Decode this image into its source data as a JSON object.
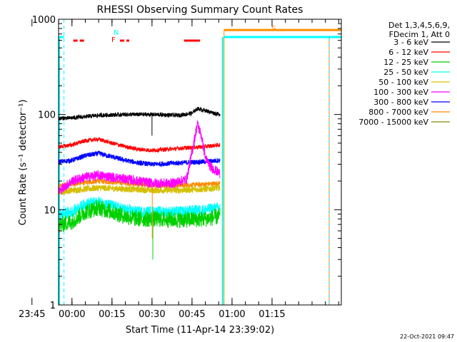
{
  "chart_data": {
    "type": "line",
    "title": "RHESSI Observing Summary Count Rates",
    "xlabel": "Start Time (11-Apr-14 23:39:02)",
    "ylabel": "Count Rate (s⁻¹ detector⁻¹)",
    "ylog": true,
    "ylim": [
      1,
      1000
    ],
    "xlim_minutes": [
      -5.03,
      100.97
    ],
    "x_ticks": [
      {
        "label": "23:45",
        "minute": -15
      },
      {
        "label": "00:00",
        "minute": 0
      },
      {
        "label": "00:15",
        "minute": 15
      },
      {
        "label": "00:30",
        "minute": 30
      },
      {
        "label": "00:45",
        "minute": 45
      },
      {
        "label": "01:00",
        "minute": 60
      },
      {
        "label": "01:15",
        "minute": 75
      }
    ],
    "y_ticks": [
      "1",
      "10",
      "100",
      "1000"
    ],
    "legend_header": [
      "Det 1,3,4,5,6,9,",
      "FDecim 1, Att 0"
    ],
    "series": [
      {
        "name": "3 - 6 keV",
        "color": "#000000",
        "values": [
          [
            -8.5,
            90
          ],
          [
            0,
            92
          ],
          [
            10,
            98
          ],
          [
            20,
            100
          ],
          [
            30,
            100
          ],
          [
            40,
            98
          ],
          [
            45,
            103
          ],
          [
            47,
            115
          ],
          [
            50,
            110
          ],
          [
            54,
            102
          ],
          [
            55.5,
            100
          ]
        ]
      },
      {
        "name": "6 - 12 keV",
        "color": "#ff0000",
        "values": [
          [
            -8.5,
            44
          ],
          [
            0,
            48
          ],
          [
            5,
            53
          ],
          [
            10,
            55
          ],
          [
            15,
            50
          ],
          [
            20,
            46
          ],
          [
            25,
            43
          ],
          [
            30,
            42
          ],
          [
            40,
            44
          ],
          [
            50,
            46
          ],
          [
            55.5,
            48
          ]
        ]
      },
      {
        "name": "12 - 25 keV",
        "color": "#00d000",
        "values": [
          [
            -8.5,
            6.5
          ],
          [
            0,
            7.5
          ],
          [
            5,
            9.5
          ],
          [
            10,
            10.5
          ],
          [
            15,
            9.5
          ],
          [
            20,
            8.5
          ],
          [
            25,
            8
          ],
          [
            30,
            8
          ],
          [
            40,
            7.8
          ],
          [
            50,
            8
          ],
          [
            55.5,
            8.5
          ]
        ]
      },
      {
        "name": "25 - 50 keV",
        "color": "#00ffff",
        "values": [
          [
            -8.5,
            8.5
          ],
          [
            0,
            9.5
          ],
          [
            5,
            11.5
          ],
          [
            10,
            12
          ],
          [
            15,
            11
          ],
          [
            20,
            10
          ],
          [
            25,
            9.5
          ],
          [
            30,
            9.5
          ],
          [
            40,
            9.5
          ],
          [
            50,
            10
          ],
          [
            55.5,
            10.5
          ]
        ]
      },
      {
        "name": "50 - 100 keV",
        "color": "#d4c000",
        "values": [
          [
            -8.5,
            15
          ],
          [
            0,
            16
          ],
          [
            10,
            17
          ],
          [
            20,
            16.5
          ],
          [
            30,
            16
          ],
          [
            40,
            16
          ],
          [
            50,
            16.5
          ],
          [
            55.5,
            17
          ]
        ]
      },
      {
        "name": "100 - 300 keV",
        "color": "#ff00ff",
        "values": [
          [
            -8.5,
            13
          ],
          [
            0,
            20
          ],
          [
            5,
            22
          ],
          [
            10,
            23
          ],
          [
            15,
            22
          ],
          [
            20,
            21
          ],
          [
            25,
            20
          ],
          [
            30,
            19
          ],
          [
            38,
            19
          ],
          [
            43,
            21
          ],
          [
            45,
            40
          ],
          [
            47,
            80
          ],
          [
            48.5,
            60
          ],
          [
            50,
            35
          ],
          [
            52,
            28
          ],
          [
            55.5,
            24
          ]
        ]
      },
      {
        "name": "300 - 800 keV",
        "color": "#0000ff",
        "values": [
          [
            -8.5,
            31
          ],
          [
            0,
            33
          ],
          [
            5,
            37
          ],
          [
            10,
            39
          ],
          [
            15,
            36
          ],
          [
            20,
            33
          ],
          [
            25,
            31
          ],
          [
            30,
            30
          ],
          [
            40,
            31
          ],
          [
            50,
            32
          ],
          [
            55.5,
            33
          ]
        ]
      },
      {
        "name": "800 - 7000 keV",
        "color": "#ff8c00",
        "values": [
          [
            -8.5,
            17.5
          ],
          [
            0,
            18.5
          ],
          [
            10,
            20
          ],
          [
            20,
            19
          ],
          [
            30,
            18
          ],
          [
            40,
            18
          ],
          [
            50,
            18.5
          ],
          [
            55.5,
            19
          ]
        ]
      },
      {
        "name": "7000 - 15000 keV",
        "color": "#8b8b00",
        "values": []
      }
    ],
    "markers": [
      {
        "label": "N",
        "color": "#00ffff",
        "minute": -3.0
      },
      {
        "label": "F",
        "color": "#ff0000",
        "minute": -3.0
      },
      {
        "label": "S",
        "color": "#ff8c00",
        "minute": 57.0
      }
    ],
    "flare_segments": [
      [
        0.5,
        5
      ],
      [
        18,
        21.5
      ],
      [
        42,
        48
      ]
    ],
    "attenuator_lines": [
      {
        "color": "#00ffff",
        "left_level": 650,
        "right_level": 650
      },
      {
        "color": "#ff8c00",
        "right_level": 770
      }
    ]
  },
  "footer": {
    "date": "22-Oct-2021 09:47"
  }
}
